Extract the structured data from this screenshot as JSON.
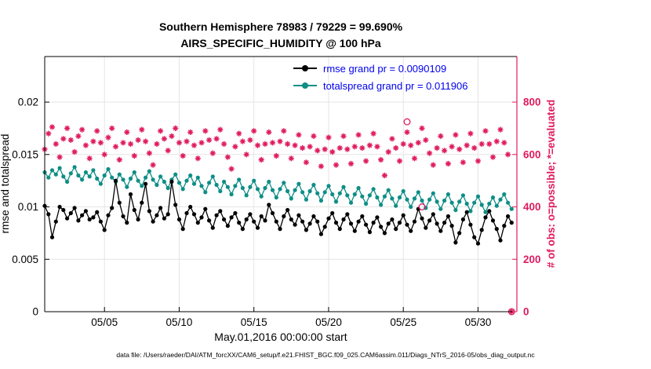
{
  "caption": "data file: /Users/raeder/DAI/ATM_forcXX/CAM6_setup/f.e21.FHIST_BGC.f09_025.CAM6assim.011/Diags_NTrS_2016-05/obs_diag_output.nc",
  "colors": {
    "rmse": "#000000",
    "totalspread": "#0e8e86",
    "obs": "#e01b60",
    "grid": "#e4e4e4",
    "legend_text": "#0000ee",
    "axis_left": "#000000"
  },
  "legend": {
    "rmse_label": "rmse grand pr = 0.0090109",
    "totalspread_label": "totalspread grand pr = 0.011906"
  },
  "chart_data": {
    "type": "line",
    "title": "Southern Hemisphere 78983 / 79229 = 99.690%",
    "subtitle": "AIRS_SPECIFIC_HUMIDITY @ 100 hPa",
    "xlabel": "May.01,2016 00:00:00 start",
    "ylabel_left": "rmse and totalspread",
    "ylabel_right": "# of obs: o=possible; *=evaluated",
    "grid": true,
    "legend_position": "top-center-inside",
    "x_start_day": 0,
    "x_step_days": 0.25,
    "x_range_days": [
      0,
      31.6
    ],
    "ylim_left": [
      0,
      0.02435
    ],
    "ylim_right": [
      0,
      974
    ],
    "x_ticks": [
      {
        "day": 4,
        "label": "05/05"
      },
      {
        "day": 9,
        "label": "05/10"
      },
      {
        "day": 14,
        "label": "05/15"
      },
      {
        "day": 19,
        "label": "05/20"
      },
      {
        "day": 24,
        "label": "05/25"
      },
      {
        "day": 29,
        "label": "05/30"
      }
    ],
    "y_ticks_left": [
      {
        "v": 0,
        "label": "0"
      },
      {
        "v": 0.005,
        "label": "0.005"
      },
      {
        "v": 0.01,
        "label": "0.01"
      },
      {
        "v": 0.015,
        "label": "0.015"
      },
      {
        "v": 0.02,
        "label": "0.02"
      }
    ],
    "y_ticks_right": [
      {
        "v": 0,
        "label": "0"
      },
      {
        "v": 200,
        "label": "200"
      },
      {
        "v": 400,
        "label": "400"
      },
      {
        "v": 600,
        "label": "600"
      },
      {
        "v": 800,
        "label": "800"
      }
    ],
    "series": [
      {
        "name": "rmse",
        "legend": "rmse grand pr = 0.0090109",
        "color": "#000000",
        "marker": "circle",
        "axis": "left",
        "values": [
          0.0101,
          0.0093,
          0.0071,
          0.0086,
          0.01,
          0.0097,
          0.0089,
          0.0094,
          0.0099,
          0.0087,
          0.0092,
          0.0096,
          0.0088,
          0.009,
          0.0095,
          0.0086,
          0.0078,
          0.0092,
          0.0099,
          0.0125,
          0.0104,
          0.0091,
          0.0085,
          0.0112,
          0.0097,
          0.0088,
          0.0104,
          0.0122,
          0.0096,
          0.0086,
          0.0092,
          0.0099,
          0.0089,
          0.0093,
          0.0124,
          0.0102,
          0.0088,
          0.0079,
          0.0094,
          0.01,
          0.0093,
          0.0085,
          0.009,
          0.0098,
          0.0087,
          0.008,
          0.0092,
          0.0096,
          0.0088,
          0.0082,
          0.009,
          0.0094,
          0.0085,
          0.0079,
          0.0088,
          0.0093,
          0.0086,
          0.008,
          0.0091,
          0.0087,
          0.0102,
          0.0094,
          0.0086,
          0.0079,
          0.0091,
          0.0097,
          0.0088,
          0.0083,
          0.0092,
          0.0086,
          0.0078,
          0.0084,
          0.0091,
          0.0086,
          0.0074,
          0.0081,
          0.0089,
          0.0094,
          0.0085,
          0.0079,
          0.0088,
          0.0093,
          0.0084,
          0.0077,
          0.0086,
          0.0091,
          0.0083,
          0.0076,
          0.0085,
          0.009,
          0.0081,
          0.0075,
          0.0084,
          0.0088,
          0.0079,
          0.0085,
          0.0092,
          0.0083,
          0.0077,
          0.0086,
          0.0098,
          0.0089,
          0.008,
          0.0087,
          0.0093,
          0.0084,
          0.0077,
          0.0085,
          0.0091,
          0.0082,
          0.0066,
          0.0075,
          0.0088,
          0.0095,
          0.0083,
          0.0071,
          0.0065,
          0.0078,
          0.009,
          0.0096,
          0.0087,
          0.0079,
          0.0068,
          0.0082,
          0.0091,
          0.0085
        ]
      },
      {
        "name": "totalspread",
        "legend": "totalspread grand pr = 0.011906",
        "color": "#0e8e86",
        "marker": "circle",
        "axis": "left",
        "values": [
          0.0133,
          0.0128,
          0.0135,
          0.0131,
          0.0137,
          0.0129,
          0.0124,
          0.0132,
          0.0138,
          0.013,
          0.0126,
          0.0133,
          0.0129,
          0.0135,
          0.0127,
          0.0122,
          0.013,
          0.0136,
          0.0128,
          0.0124,
          0.0131,
          0.0126,
          0.0119,
          0.0127,
          0.0133,
          0.0125,
          0.012,
          0.0128,
          0.0134,
          0.0126,
          0.0121,
          0.0129,
          0.0124,
          0.0118,
          0.0126,
          0.0131,
          0.0123,
          0.0117,
          0.0125,
          0.013,
          0.0122,
          0.0128,
          0.012,
          0.0114,
          0.0123,
          0.0129,
          0.0121,
          0.0115,
          0.0124,
          0.0119,
          0.0112,
          0.012,
          0.0126,
          0.0118,
          0.0111,
          0.0119,
          0.0125,
          0.0117,
          0.011,
          0.0118,
          0.0124,
          0.0116,
          0.0109,
          0.0117,
          0.0123,
          0.0115,
          0.0108,
          0.0116,
          0.0122,
          0.0114,
          0.0107,
          0.0115,
          0.0121,
          0.0113,
          0.0106,
          0.0114,
          0.012,
          0.0112,
          0.0105,
          0.0113,
          0.0119,
          0.0111,
          0.0104,
          0.0112,
          0.0118,
          0.011,
          0.0103,
          0.0111,
          0.0117,
          0.0109,
          0.0102,
          0.011,
          0.0116,
          0.0108,
          0.0101,
          0.0109,
          0.0115,
          0.0107,
          0.01,
          0.0108,
          0.0114,
          0.0106,
          0.0099,
          0.0107,
          0.0113,
          0.0105,
          0.0098,
          0.0106,
          0.0112,
          0.0104,
          0.0097,
          0.0105,
          0.0111,
          0.0103,
          0.0096,
          0.0104,
          0.011,
          0.0102,
          0.0095,
          0.0103,
          0.0109,
          0.0101,
          0.0107,
          0.0112,
          0.0104,
          0.0098
        ]
      },
      {
        "name": "obs-evaluated",
        "legend": null,
        "color": "#e01b60",
        "marker": "asterisk",
        "axis": "right",
        "values": [
          620,
          680,
          705,
          640,
          590,
          660,
          700,
          655,
          610,
          670,
          695,
          635,
          585,
          650,
          690,
          645,
          600,
          665,
          700,
          630,
          580,
          645,
          685,
          640,
          595,
          655,
          695,
          650,
          605,
          560,
          640,
          690,
          660,
          615,
          670,
          700,
          645,
          595,
          650,
          685,
          635,
          585,
          645,
          690,
          655,
          605,
          660,
          695,
          640,
          590,
          545,
          630,
          680,
          650,
          600,
          655,
          690,
          635,
          580,
          640,
          685,
          645,
          595,
          650,
          690,
          640,
          585,
          635,
          675,
          625,
          570,
          630,
          670,
          615,
          555,
          620,
          665,
          610,
          560,
          625,
          670,
          620,
          565,
          630,
          675,
          625,
          575,
          635,
          680,
          630,
          580,
          520,
          610,
          660,
          625,
          575,
          640,
          685,
          635,
          585,
          645,
          700,
          655,
          605,
          560,
          625,
          670,
          615,
          565,
          630,
          675,
          620,
          570,
          635,
          680,
          625,
          575,
          640,
          690,
          640,
          590,
          650,
          695,
          645,
          600,
          0
        ]
      }
    ],
    "obs_possible_points": [
      {
        "day": 24.25,
        "count": 725
      },
      {
        "day": 25.25,
        "count": 400
      },
      {
        "day": 31.25,
        "count": 0
      }
    ]
  }
}
